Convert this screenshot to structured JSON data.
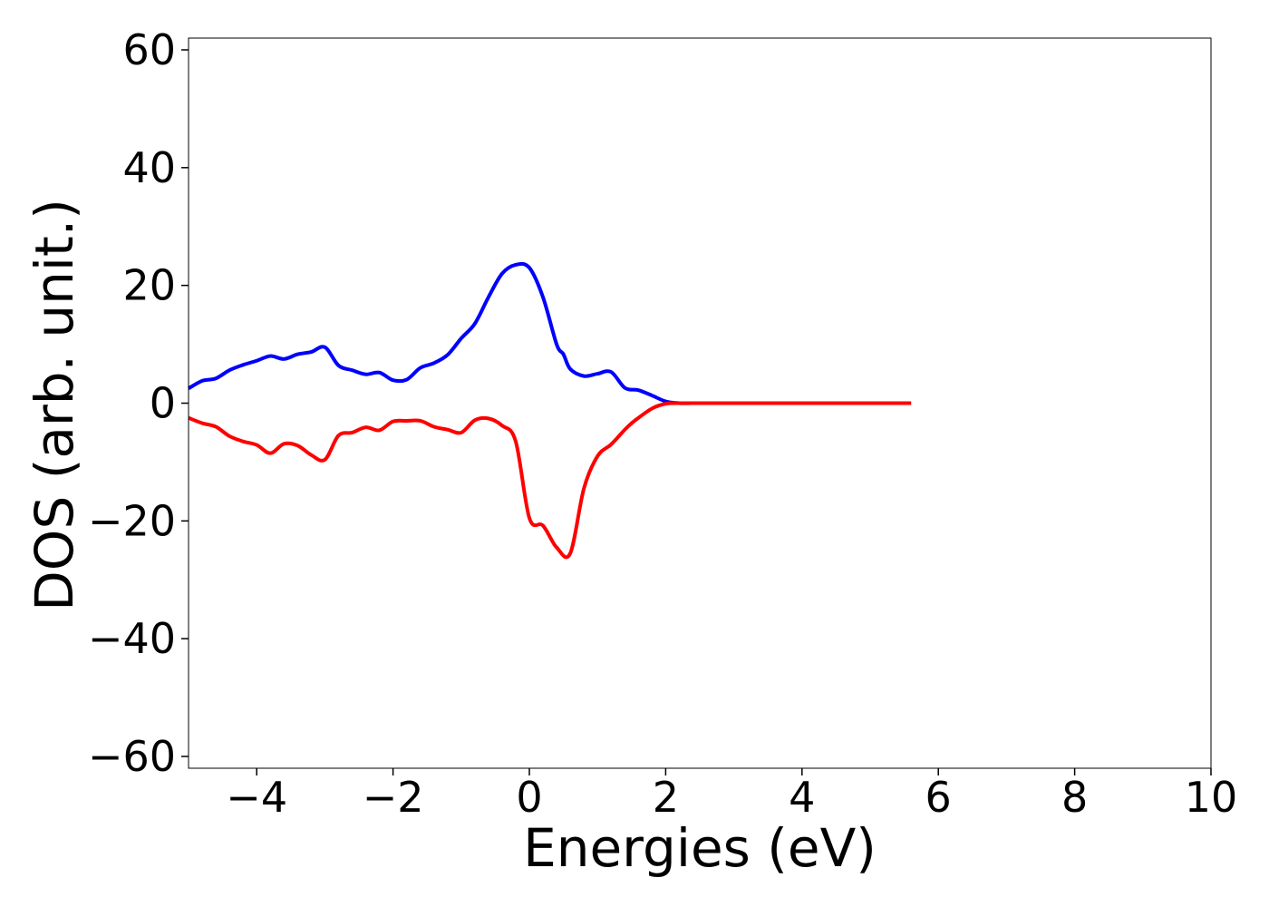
{
  "chart_data": {
    "type": "line",
    "title": "",
    "xlabel": "Energies (eV)",
    "ylabel": "DOS (arb. unit.)",
    "xlim": [
      -5,
      10
    ],
    "ylim": [
      -62,
      62
    ],
    "xticks": [
      -4,
      -2,
      0,
      2,
      4,
      6,
      8,
      10
    ],
    "yticks": [
      -60,
      -40,
      -20,
      0,
      20,
      40,
      60
    ],
    "xtick_labels": [
      "−4",
      "−2",
      "0",
      "2",
      "4",
      "6",
      "8",
      "10"
    ],
    "ytick_labels": [
      "−60",
      "−40",
      "−20",
      "0",
      "20",
      "40",
      "60"
    ],
    "grid": false,
    "legend": "none",
    "series": [
      {
        "color": "#0000ff",
        "x": [
          -5.0,
          -4.8,
          -4.6,
          -4.4,
          -4.2,
          -4.0,
          -3.8,
          -3.6,
          -3.4,
          -3.2,
          -3.0,
          -2.8,
          -2.6,
          -2.4,
          -2.2,
          -2.0,
          -1.8,
          -1.6,
          -1.4,
          -1.2,
          -1.0,
          -0.8,
          -0.6,
          -0.4,
          -0.2,
          0.0,
          0.2,
          0.4,
          0.5,
          0.6,
          0.8,
          1.0,
          1.2,
          1.4,
          1.6,
          1.8,
          2.0,
          2.2,
          2.4,
          2.6,
          2.8,
          3.0,
          3.2,
          3.4,
          3.6,
          4.0,
          4.5,
          5.0,
          5.6
        ],
        "y": [
          2.5,
          3.8,
          4.2,
          5.6,
          6.5,
          7.2,
          8.0,
          7.5,
          8.3,
          8.7,
          9.5,
          6.4,
          5.6,
          4.9,
          5.2,
          3.9,
          4.0,
          6.0,
          6.8,
          8.2,
          11.0,
          13.5,
          18.0,
          22.0,
          23.5,
          23.0,
          18.0,
          10.0,
          8.3,
          5.8,
          4.6,
          5.0,
          5.3,
          2.6,
          2.2,
          1.3,
          0.3,
          0.0,
          0.0,
          0.0,
          0.0,
          0.0,
          0.0,
          0.0,
          0.0,
          0.0,
          0.0,
          0.0,
          0.0
        ]
      },
      {
        "color": "#ff0000",
        "x": [
          -5.0,
          -4.8,
          -4.6,
          -4.4,
          -4.2,
          -4.0,
          -3.8,
          -3.6,
          -3.4,
          -3.2,
          -3.0,
          -2.8,
          -2.6,
          -2.4,
          -2.2,
          -2.0,
          -1.8,
          -1.6,
          -1.4,
          -1.2,
          -1.0,
          -0.8,
          -0.6,
          -0.4,
          -0.2,
          0.0,
          0.2,
          0.4,
          0.6,
          0.8,
          1.0,
          1.2,
          1.4,
          1.5,
          1.6,
          1.8,
          2.0,
          2.2,
          2.4,
          2.6,
          2.8,
          3.0,
          3.2,
          3.4,
          3.6,
          4.0,
          4.5,
          5.0,
          5.6
        ],
        "y": [
          -2.5,
          -3.4,
          -4.0,
          -5.6,
          -6.5,
          -7.1,
          -8.5,
          -6.9,
          -7.2,
          -8.8,
          -9.6,
          -5.5,
          -5.0,
          -4.1,
          -4.6,
          -3.1,
          -3.0,
          -3.0,
          -4.0,
          -4.5,
          -5.0,
          -2.9,
          -2.6,
          -3.8,
          -6.5,
          -19.5,
          -20.8,
          -24.5,
          -25.5,
          -14.5,
          -9.0,
          -7.0,
          -4.5,
          -3.4,
          -2.5,
          -0.9,
          -0.1,
          0.0,
          0.0,
          0.0,
          0.0,
          0.0,
          0.0,
          0.0,
          0.0,
          0.0,
          0.0,
          0.0,
          0.0
        ]
      }
    ]
  }
}
